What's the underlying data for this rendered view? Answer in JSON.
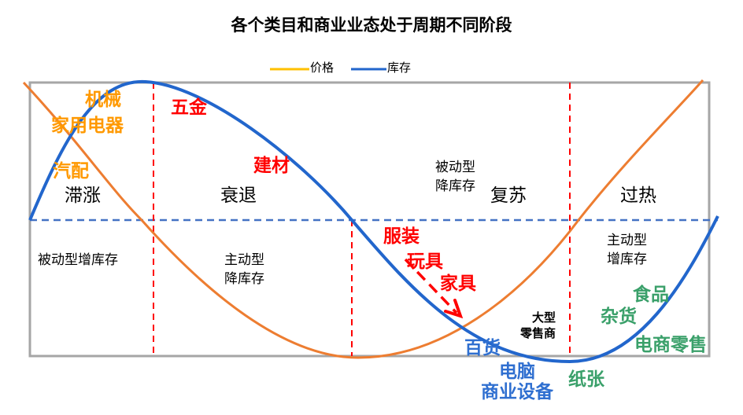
{
  "title": "各个类目和商业业态处于周期不同阶段",
  "legend": [
    {
      "label": "价格",
      "color": "#FFC000"
    },
    {
      "label": "库存",
      "color": "#2266CC"
    }
  ],
  "colors": {
    "price_curve": "#ED7D31",
    "inventory_curve": "#2266CC",
    "orange_label": "#FF9900",
    "red_label": "#FF0000",
    "blue_label": "#2F6FD0",
    "green_label": "#3AA06A",
    "divider": "#FF0000",
    "midline": "#4472C4"
  },
  "phases": [
    "滞涨",
    "衰退",
    "复苏",
    "过热"
  ],
  "notes": {
    "passive_increase": "被动型增库存",
    "active_decrease": [
      "主动型",
      "降库存"
    ],
    "passive_decrease": [
      "被动型",
      "降库存"
    ],
    "active_increase": [
      "主动型",
      "增库存"
    ],
    "large_retailer": [
      "大型",
      "零售商"
    ]
  },
  "categories": {
    "orange": [
      "机械",
      "家用电器",
      "汽配"
    ],
    "red": [
      "五金",
      "建材",
      "服装",
      "玩具",
      "家具"
    ],
    "blue": [
      "百货",
      "电脑",
      "商业设备"
    ],
    "green": [
      "食品",
      "杂货",
      "电商零售",
      "纸张"
    ]
  }
}
